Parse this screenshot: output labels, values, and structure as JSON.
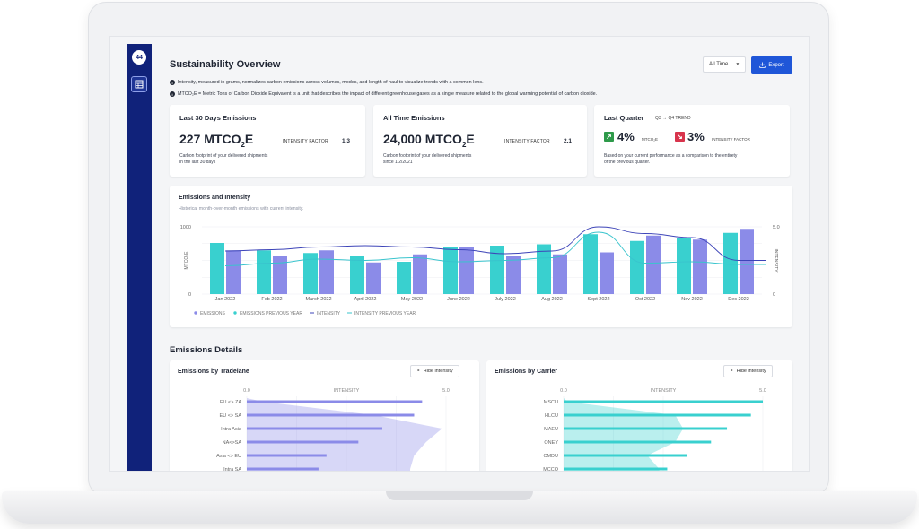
{
  "colors": {
    "emissions": "#8b8be8",
    "emissions_prev": "#39d0cf",
    "intensity": "#3d44b8",
    "intensity_prev": "#39c4cd",
    "sidebar": "#10227a",
    "accent": "#1f56d8",
    "trend_up": "#2e9a4a",
    "trend_down": "#d8344c"
  },
  "sidebar": {
    "logo": "44",
    "nav_icon": "grid-icon"
  },
  "header": {
    "title": "Sustainability Overview",
    "range_select": "All Time",
    "export_label": "Export"
  },
  "info_notes": [
    "Intensity, measured in grams, normalizes carbon emissions across volumes, modes, and length of haul to visualize trends with a common lens.",
    "MTCO₂E = Metric Tons of Carbon Dioxide Equivalent is a unit that describes the impact of different greenhouse gases as a single measure related to the global warming potential of carbon dioxide."
  ],
  "stats": [
    {
      "title": "Last 30 Days Emissions",
      "value": "227 MTCO",
      "value_sub": "2",
      "value_tail": "E",
      "factor_label": "INTENSITY FACTOR",
      "factor_value": "1.3",
      "note": "Carbon footprint of your delivered shipments in the last 30 days"
    },
    {
      "title": "All Time Emissions",
      "value": "24,000 MTCO",
      "value_sub": "2",
      "value_tail": "E",
      "factor_label": "INTENSITY FACTOR",
      "factor_value": "2.1",
      "note": "Carbon footprint of your delivered shipments since 1/2/2021"
    }
  ],
  "quarter": {
    "title": "Last Quarter",
    "trend_label": "Q3 → Q4 TREND",
    "up_value": "4%",
    "up_unit": "MTCO₂E",
    "down_value": "3%",
    "down_unit": "INTENSITY FACTOR",
    "note": "Based on your current performance as a comparison to the entirety of the previous quarter."
  },
  "emissions_chart": {
    "title": "Emissions and Intensity",
    "subtitle": "Historical month-over-month emissions with current intensity.",
    "chart_data": {
      "type": "bar",
      "categories": [
        "Jan 2022",
        "Feb 2022",
        "March 2022",
        "April 2022",
        "May 2022",
        "June 2022",
        "July 2022",
        "Aug 2022",
        "Sept 2022",
        "Oct 2022",
        "Nov 2022",
        "Dec 2022"
      ],
      "series": [
        {
          "name": "EMISSIONS PREVIOUS YEAR",
          "kind": "bar",
          "values": [
            760,
            650,
            610,
            560,
            480,
            700,
            720,
            740,
            890,
            790,
            830,
            910
          ]
        },
        {
          "name": "EMISSIONS",
          "kind": "bar",
          "values": [
            650,
            570,
            650,
            470,
            590,
            700,
            560,
            590,
            620,
            870,
            810,
            970
          ]
        },
        {
          "name": "INTENSITY",
          "kind": "line",
          "values": [
            3.2,
            3.3,
            3.5,
            3.6,
            3.5,
            3.3,
            3.0,
            3.2,
            5.0,
            4.5,
            4.2,
            2.5
          ]
        },
        {
          "name": "INTENSITY PREVIOUS YEAR",
          "kind": "line",
          "values": [
            2.1,
            2.3,
            2.6,
            2.5,
            2.7,
            2.4,
            2.5,
            2.7,
            4.6,
            2.3,
            2.4,
            2.2
          ]
        }
      ],
      "y_left": {
        "label": "MTCO₂E",
        "ticks": [
          "1000",
          "0"
        ],
        "range": [
          0,
          1000
        ]
      },
      "y_right": {
        "label": "INTENSITY",
        "ticks": [
          "5.0",
          "0"
        ],
        "range": [
          0,
          5
        ]
      },
      "legend_position": "bottom-left",
      "grid": true
    }
  },
  "details": {
    "title": "Emissions Details",
    "hide_label": "Hide intensity",
    "tradelane": {
      "title": "Emissions by Tradelane",
      "chart_data": {
        "type": "bar",
        "orientation": "horizontal",
        "axis_ticks": [
          "0.0",
          "INTENSITY",
          "5.0"
        ],
        "categories": [
          "EU <> ZA",
          "EU <> SA",
          "Intra Asia",
          "NA<>SA",
          "Asia <> EU",
          "Intra SA"
        ],
        "values": [
          4.4,
          4.2,
          3.4,
          2.8,
          2.0,
          1.8
        ],
        "intensity_band": [
          0.4,
          3.2,
          4.9,
          4.5,
          4.2,
          4.1
        ],
        "xlim": [
          0,
          5
        ]
      }
    },
    "carrier": {
      "title": "Emissions by Carrier",
      "chart_data": {
        "type": "bar",
        "orientation": "horizontal",
        "axis_ticks": [
          "0.0",
          "INTENSITY",
          "5.0"
        ],
        "categories": [
          "MSCU",
          "HLCU",
          "MAEU",
          "ONEY",
          "CMDU",
          "MCCO"
        ],
        "values": [
          5.0,
          4.7,
          4.1,
          3.7,
          3.1,
          2.6
        ],
        "intensity_band": [
          0.1,
          2.8,
          3.0,
          2.8,
          2.1,
          2.4
        ],
        "xlim": [
          0,
          5
        ]
      }
    }
  }
}
